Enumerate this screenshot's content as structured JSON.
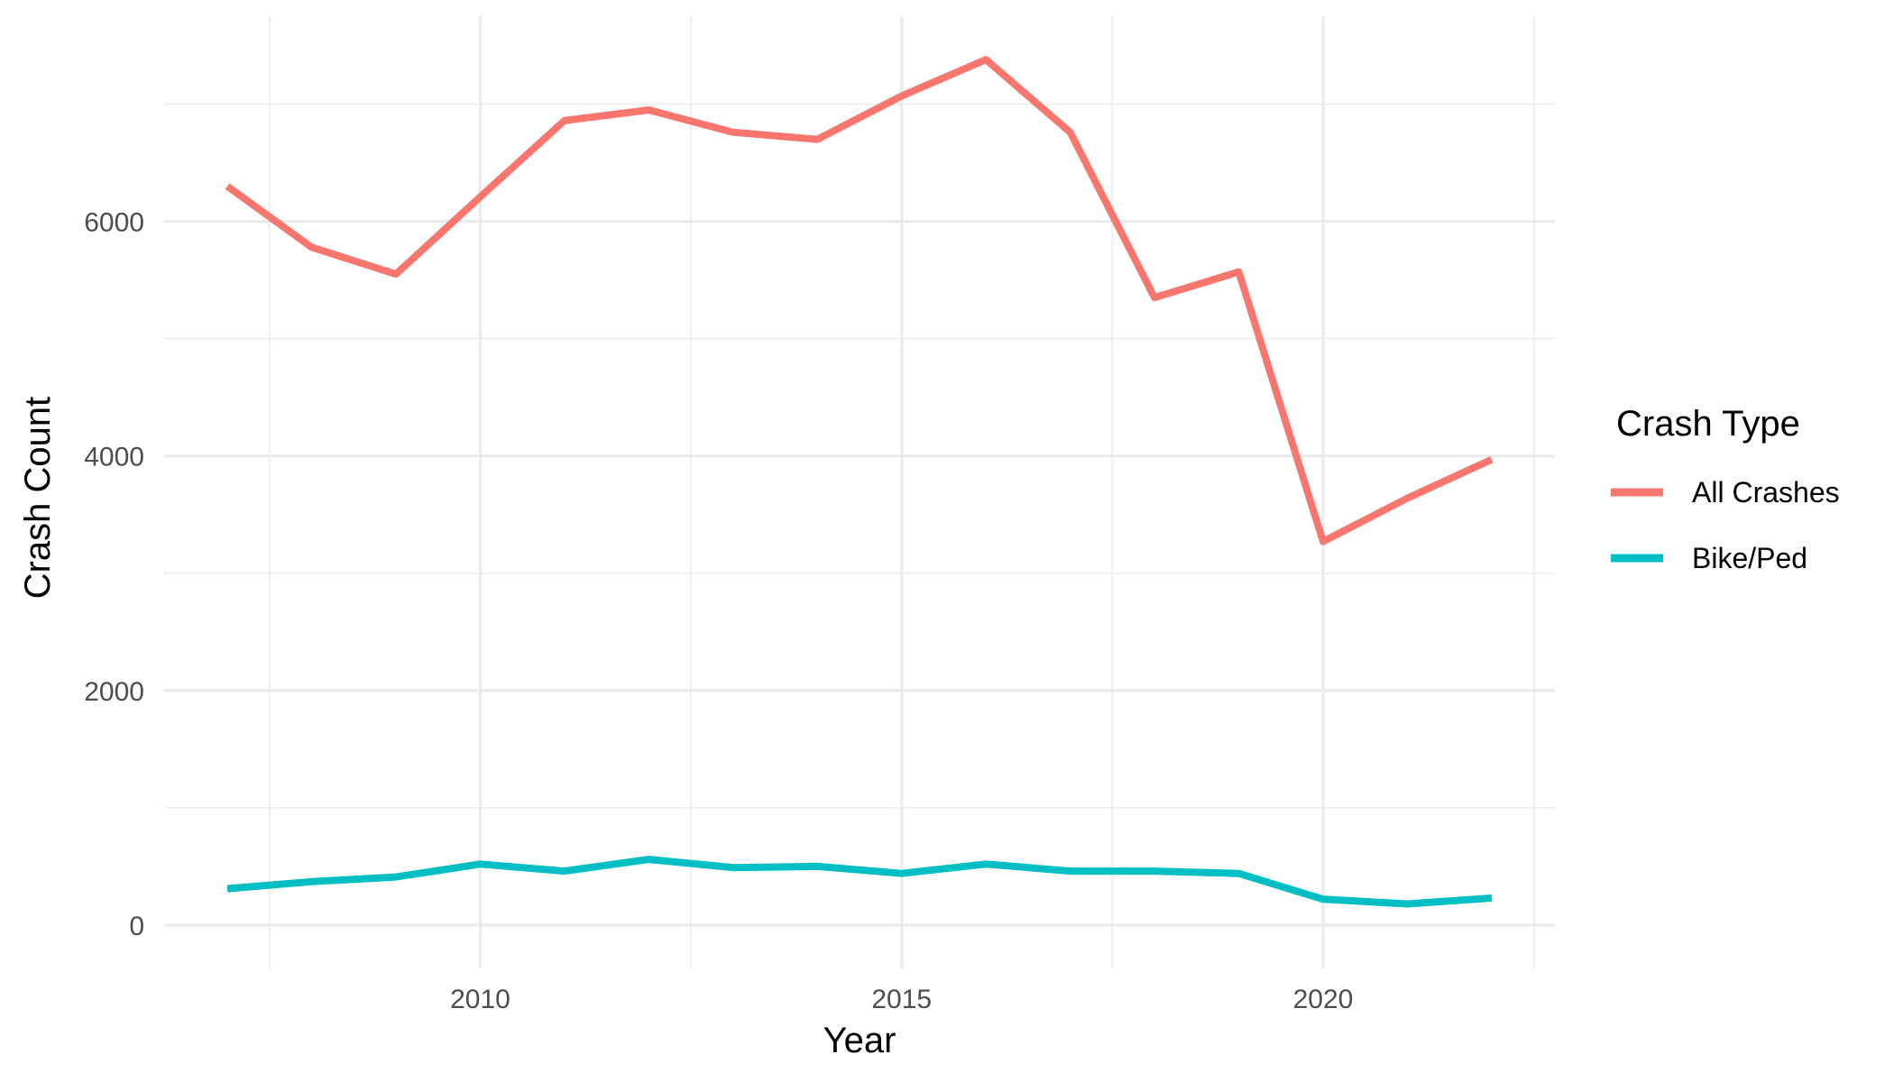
{
  "chart_data": {
    "type": "line",
    "title": "",
    "xlabel": "Year",
    "ylabel": "Crash Count",
    "xlim": [
      2006.25,
      2022.75
    ],
    "ylim": [
      -370,
      7750
    ],
    "x_ticks": [
      2010,
      2015,
      2020
    ],
    "x_minor": [
      2007.5,
      2012.5,
      2017.5,
      2022.5
    ],
    "y_ticks": [
      0,
      2000,
      4000,
      6000
    ],
    "y_minor": [
      1000,
      3000,
      5000,
      7000
    ],
    "x": [
      2007,
      2008,
      2009,
      2010,
      2011,
      2012,
      2013,
      2014,
      2015,
      2016,
      2017,
      2018,
      2019,
      2020,
      2021,
      2022
    ],
    "grid": true,
    "legend": {
      "title": "Crash Type",
      "position": "right"
    },
    "series": [
      {
        "name": "All Crashes",
        "color": "#F8766D",
        "values": [
          6300,
          5780,
          5550,
          6210,
          6860,
          6950,
          6760,
          6700,
          7070,
          7380,
          6760,
          5350,
          5570,
          3270,
          3640,
          3970
        ]
      },
      {
        "name": "Bike/Ped",
        "color": "#00BFC4",
        "values": [
          310,
          370,
          410,
          520,
          460,
          560,
          490,
          500,
          440,
          520,
          460,
          460,
          440,
          220,
          180,
          230
        ]
      }
    ]
  }
}
